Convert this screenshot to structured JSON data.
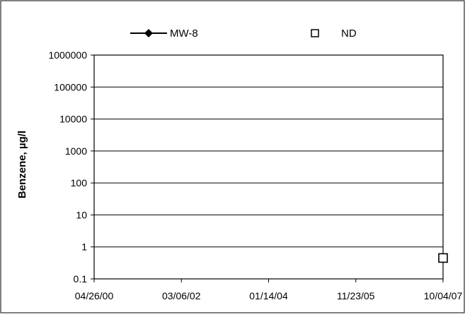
{
  "chart_data": {
    "type": "line",
    "ylabel": "Benzene, µg/l",
    "xlabel": "",
    "y_scale": "log",
    "ylim": [
      0.1,
      1000000
    ],
    "y_ticks": [
      "0.1",
      "1",
      "10",
      "100",
      "1000",
      "10000",
      "100000",
      "1000000"
    ],
    "xlim": [
      "2000-04-26",
      "2007-10-04"
    ],
    "x_ticks": [
      "04/26/00",
      "03/06/02",
      "01/14/04",
      "11/23/05",
      "10/04/07"
    ],
    "grid": "horizontal",
    "legend_position": "top",
    "series": [
      {
        "name": "MW-8",
        "marker": "diamond-filled",
        "line": true,
        "color": "#000000",
        "points": []
      },
      {
        "name": "ND",
        "marker": "square-open",
        "line": false,
        "color": "#000000",
        "points": [
          {
            "x": "2007-10-04",
            "y": 0.45
          }
        ]
      }
    ]
  }
}
